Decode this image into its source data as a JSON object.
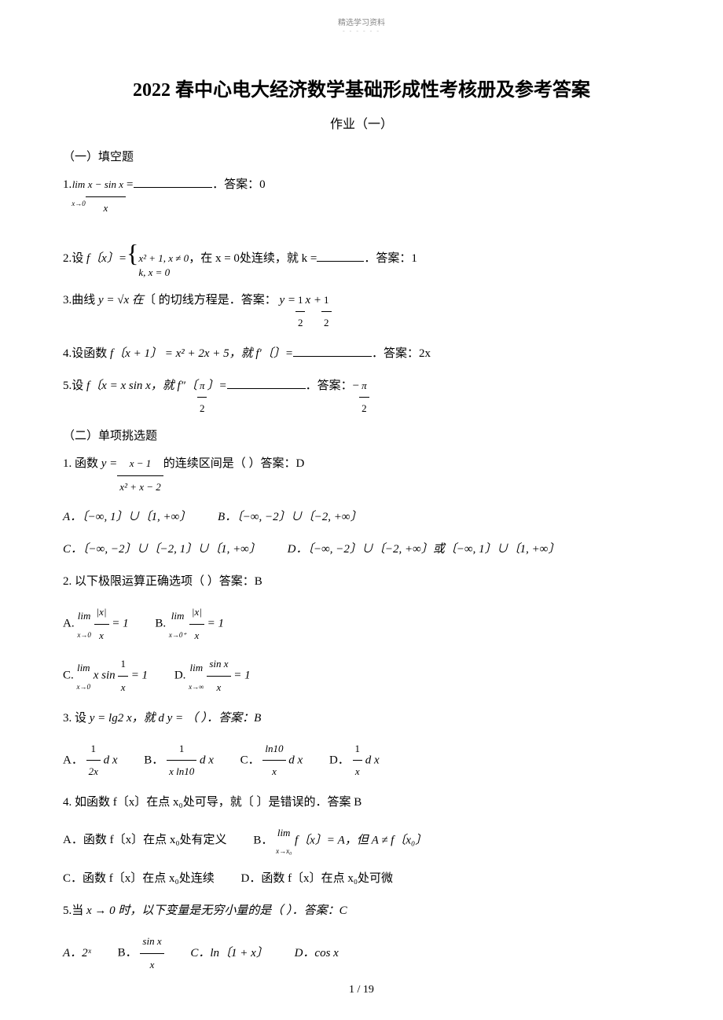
{
  "header": {
    "small_text": "精选学习资料",
    "dashes": "- - - - - -"
  },
  "title": "2022 春中心电大经济数学基础形成性考核册及参考答案",
  "subtitle": "作业（一）",
  "section1_header": "（一）填空题",
  "problems_fill": {
    "p1": {
      "num": "1.",
      "pre": "lim",
      "sub": "x→0",
      "frac_num": "x − sin x",
      "frac_den": "x",
      "eq": "=",
      "answer_label": "．答案：0"
    },
    "p2": {
      "num": "2.设",
      "fx": "f〔x〕",
      "eq1": "=",
      "brace_line1": "x² + 1,  x ≠ 0",
      "brace_line2": "k,        x = 0",
      "text": "，在   x = 0处连续，就    k =",
      "answer": "．答案：1"
    },
    "p3": {
      "num": "3.曲线",
      "eq": "y = √x 在",
      "text": "〔  的切线方程是．答案：",
      "ans": "y = ",
      "frac1_num": "1",
      "frac1_den": "2",
      "plus": "x +",
      "frac2_num": "1",
      "frac2_den": "2"
    },
    "p4": {
      "num": "4.设函数",
      "eq": "f〔x + 1〕 = x² + 2x + 5，就   f′〔〕=",
      "answer": "．答案：2x"
    },
    "p5": {
      "num": "5.设",
      "eq": "f〔x = x sin x，就    f″〔",
      "frac_num": "π",
      "frac_den": "2",
      "eq2": "〕=",
      "answer": "．答案：−",
      "frac2_num": "π",
      "frac2_den": "2"
    }
  },
  "section2_header": "（二）单项挑选题",
  "problems_choice": {
    "p1": {
      "num": "1. 函数",
      "eq": "y =",
      "frac_num": "x − 1",
      "frac_den": "x² + x − 2",
      "text": "的连续区间是（      ）答案：D",
      "optA": "A．〔−∞, 1〕∪〔1, +∞〕",
      "optB": "B．〔−∞, −2〕∪〔−2, +∞〕",
      "optC": "C．〔−∞, −2〕∪〔−2, 1〕∪〔1, +∞〕",
      "optD": "D．〔−∞, −2〕∪〔−2, +∞〕或〔−∞, 1〕∪〔1, +∞〕"
    },
    "p2": {
      "num": "2. 以下极限运算正确选项（      ）答案：B",
      "optA_pre": "A.",
      "optA_lim": "lim",
      "optA_sub": "x→0",
      "optA_frac_num": "|x|",
      "optA_frac_den": "x",
      "optA_eq": "= 1",
      "optB_pre": "B.",
      "optB_lim": "lim",
      "optB_sub": "x→0⁺",
      "optB_frac_num": "|x|",
      "optB_frac_den": "x",
      "optB_eq": "= 1",
      "optC_pre": "C.",
      "optC_lim": "lim",
      "optC_sub": "x→0",
      "optC_text": "x sin",
      "optC_frac_num": "1",
      "optC_frac_den": "x",
      "optC_eq": "= 1",
      "optD_pre": "D.",
      "optD_lim": "lim",
      "optD_sub": "x→∞",
      "optD_frac_num": "sin x",
      "optD_frac_den": "x",
      "optD_eq": "= 1"
    },
    "p3": {
      "num": "3. 设",
      "eq": "y = lg2 x，就 d y   = （    ）．答案：B",
      "optA": "A．",
      "optA_frac_num": "1",
      "optA_frac_den": "2x",
      "optA_suf": "d x",
      "optB": "B．",
      "optB_frac_num": "1",
      "optB_frac_den": "x ln10",
      "optB_suf": "d x",
      "optC": "C．",
      "optC_frac_num": "ln10",
      "optC_frac_den": "x",
      "optC_suf": "d x",
      "optD": "D．",
      "optD_frac_num": "1",
      "optD_frac_den": "x",
      "optD_suf": "d x"
    },
    "p4": {
      "num": "4. 如函数 f〔x〕在点 x₀处可导，就〔   〕是错误的．答案    B",
      "optA": "A．函数 f〔x〕在点 x₀处有定义",
      "optB_pre": "B．",
      "optB_lim": "lim",
      "optB_sub": "x→x₀",
      "optB_text": "f〔x〕= A，但  A ≠ f〔x₀〕",
      "optC": "C．函数 f〔x〕在点 x₀处连续",
      "optD": "D．函数 f〔x〕在点 x₀处可微"
    },
    "p5": {
      "num": "5.当",
      "eq": "x → 0 时，以下变量是无穷小量的是（        ）．答案：C",
      "optA": "A．2ˣ",
      "optB": "B．",
      "optB_frac_num": "sin x",
      "optB_frac_den": "x",
      "optC": "C．ln〔1 + x〕",
      "optD": "D．cos x"
    }
  },
  "page_num": "1 / 19",
  "colors": {
    "text": "#000000",
    "header_gray": "#888888",
    "bg": "#ffffff"
  }
}
